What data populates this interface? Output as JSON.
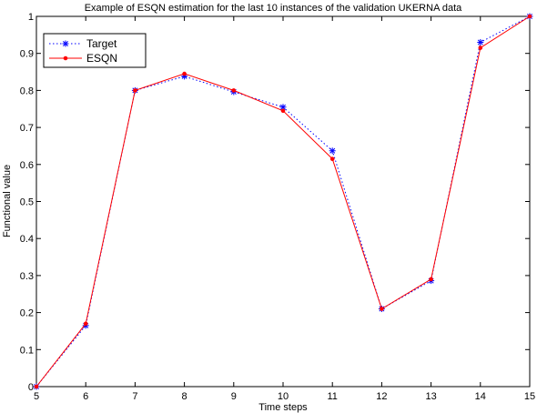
{
  "chart_data": {
    "type": "line",
    "title": "Example of ESQN estimation for the last 10 instances of the validation UKERNA data",
    "xlabel": "Time steps",
    "ylabel": "Functional value",
    "x": [
      5,
      6,
      7,
      8,
      9,
      10,
      11,
      12,
      13,
      14,
      15
    ],
    "xlim": [
      5,
      15
    ],
    "ylim": [
      0,
      1
    ],
    "xticks": [
      "5",
      "6",
      "7",
      "8",
      "9",
      "10",
      "11",
      "12",
      "13",
      "14",
      "15"
    ],
    "yticks": [
      "0",
      "0.1",
      "0.2",
      "0.3",
      "0.4",
      "0.5",
      "0.6",
      "0.7",
      "0.8",
      "0.9",
      "1"
    ],
    "grid": false,
    "legend_position": "top-left",
    "series": [
      {
        "name": "Target",
        "values": [
          0.0,
          0.165,
          0.8,
          0.838,
          0.796,
          0.755,
          0.637,
          0.21,
          0.286,
          0.93,
          1.0
        ],
        "color": "#0000ff",
        "line_style": "dotted",
        "marker": "asterisk"
      },
      {
        "name": "ESQN",
        "values": [
          0.0,
          0.17,
          0.8,
          0.845,
          0.8,
          0.745,
          0.615,
          0.21,
          0.29,
          0.915,
          1.0
        ],
        "color": "#ff0000",
        "line_style": "solid",
        "marker": "dot"
      }
    ]
  }
}
